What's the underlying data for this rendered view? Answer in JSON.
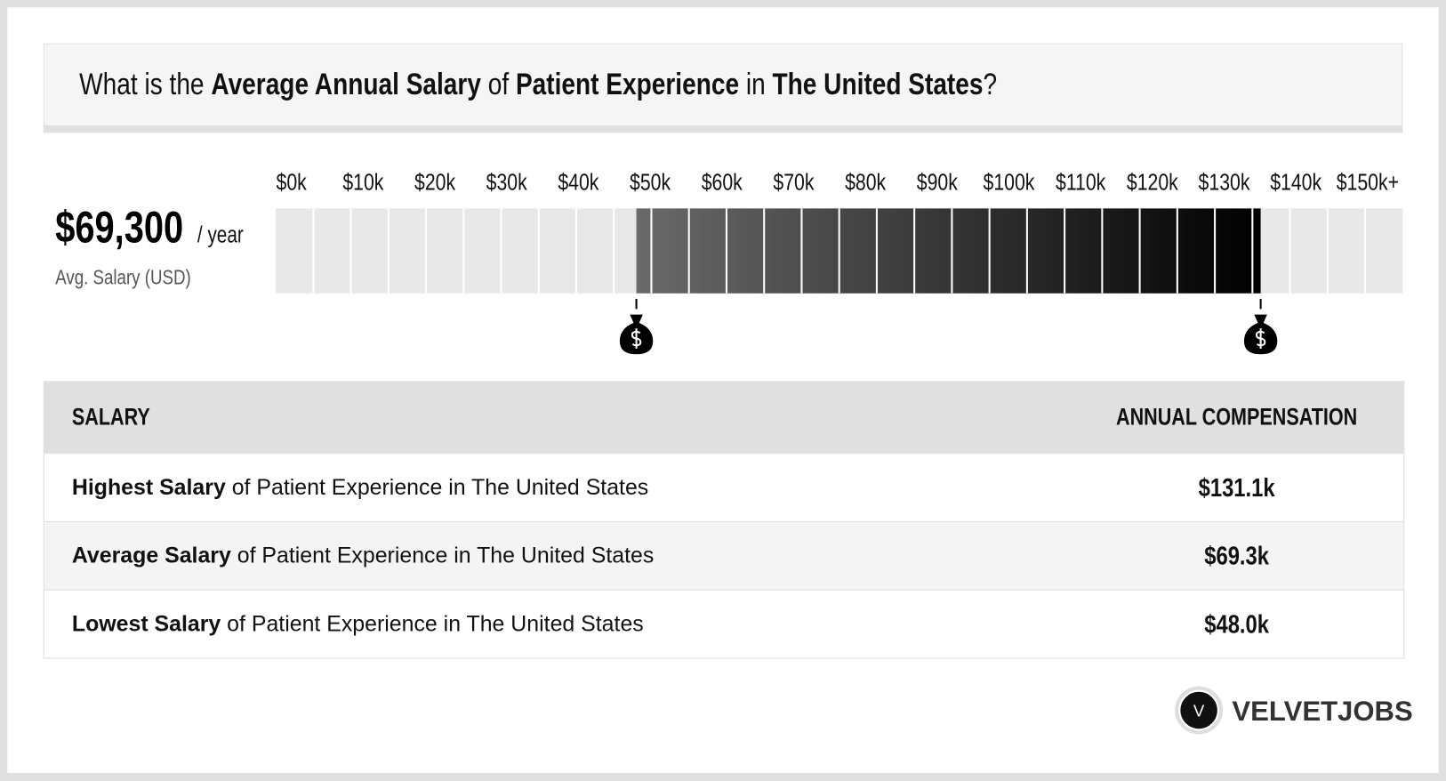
{
  "header": {
    "title": [
      "What is the ",
      "Average Annual Salary",
      " of ",
      "Patient Experience",
      " in ",
      "The United States",
      "?"
    ]
  },
  "summary": {
    "amount": "$69,300",
    "unit": "/ year",
    "caption": "Avg. Salary (USD)"
  },
  "scale": {
    "lim": [
      0,
      150
    ],
    "ticks": [
      {
        "value": 0,
        "label": "$0k"
      },
      {
        "value": 10,
        "label": "$10k"
      },
      {
        "value": 20,
        "label": "$20k"
      },
      {
        "value": 30,
        "label": "$30k"
      },
      {
        "value": 40,
        "label": "$40k"
      },
      {
        "value": 50,
        "label": "$50k"
      },
      {
        "value": 60,
        "label": "$60k"
      },
      {
        "value": 70,
        "label": "$70k"
      },
      {
        "value": 80,
        "label": "$80k"
      },
      {
        "value": 90,
        "label": "$90k"
      },
      {
        "value": 100,
        "label": "$100k"
      },
      {
        "value": 110,
        "label": "$110k"
      },
      {
        "value": 120,
        "label": "$120k"
      },
      {
        "value": 130,
        "label": "$130k"
      },
      {
        "value": 140,
        "label": "$140k"
      },
      {
        "value": 150,
        "label": "$150k+"
      }
    ]
  },
  "table": {
    "header": [
      "SALARY",
      "ANNUAL COMPENSATION"
    ],
    "rows": [
      {
        "bold": "Highest Salary",
        "rest": " of Patient Experience in The United States",
        "value": 131.1,
        "label": "$131.1k"
      },
      {
        "bold": "Average Salary",
        "rest": " of Patient Experience in The United States",
        "value": 69.3,
        "label": "$69.3k"
      },
      {
        "bold": "Lowest Salary",
        "rest": " of Patient Experience in The United States",
        "value": 48.0,
        "label": "$48.0k"
      }
    ]
  },
  "logo": {
    "letter": "V",
    "name": "VELVETJOBS"
  }
}
